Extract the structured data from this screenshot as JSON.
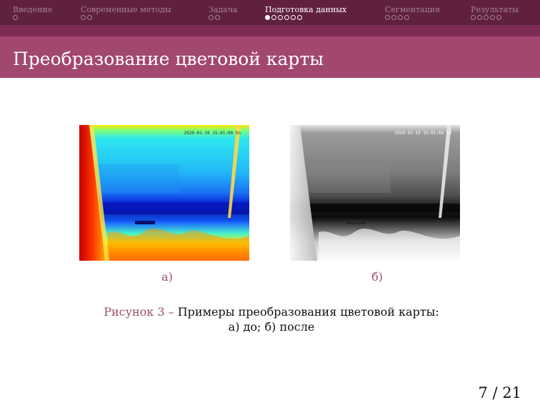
{
  "nav": {
    "sections": [
      {
        "label": "Введение",
        "dots": 1,
        "filled": 0,
        "active": false
      },
      {
        "label": "Современные методы",
        "dots": 2,
        "filled": 0,
        "active": false
      },
      {
        "label": "Задача",
        "dots": 2,
        "filled": 0,
        "active": false
      },
      {
        "label": "Подготовка данных",
        "dots": 6,
        "filled": 1,
        "active": true
      },
      {
        "label": "Сегментация",
        "dots": 4,
        "filled": 0,
        "active": false
      },
      {
        "label": "Результаты",
        "dots": 5,
        "filled": 0,
        "active": false
      }
    ]
  },
  "frame": {
    "title": "Преобразование цветовой карты"
  },
  "figure": {
    "left": {
      "stamp": "2020-01-19 15:01:08 Sn",
      "sublabel": "а)"
    },
    "right": {
      "stamp": "2020-01-19 15:01:08 Sn",
      "sublabel": "б)"
    },
    "caption_label": "Рисунок 3 –",
    "caption_text": " Примеры преобразования цветовой карты:",
    "caption_line2": "а) до; б) после"
  },
  "page": {
    "current": "7",
    "sep": " / ",
    "total": "21"
  },
  "colors": {
    "nav_bg": "#60213f",
    "strip_bg": "#7e2c53",
    "title_bg": "#a24770",
    "caption_accent": "#9b4d70"
  }
}
